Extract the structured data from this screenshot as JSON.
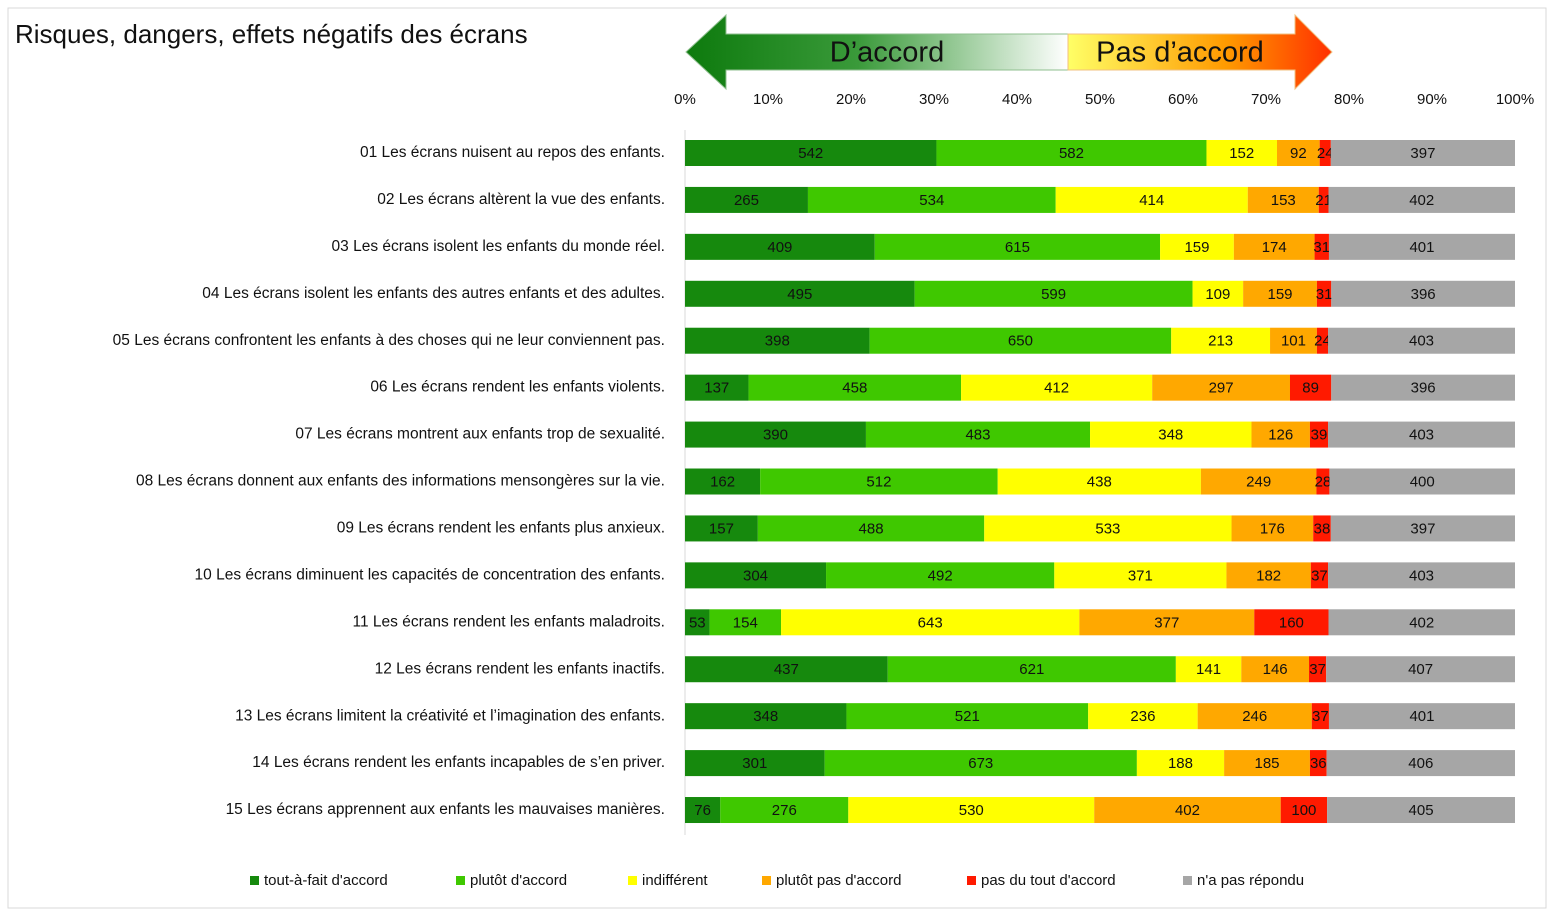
{
  "chart_data": {
    "type": "stacked-bar-100",
    "title": "Risques, dangers, effets négatifs des écrans",
    "annotations": [
      "D’accord",
      "Pas d’accord"
    ],
    "categories": [
      "01 Les écrans nuisent au repos des enfants.",
      "02 Les écrans altèrent la vue des enfants.",
      "03 Les écrans isolent les enfants du monde réel.",
      "04 Les écrans isolent les enfants des autres enfants et des adultes.",
      "05 Les écrans confrontent les enfants à des choses qui ne leur conviennent pas.",
      "06 Les écrans rendent les enfants violents.",
      "07 Les écrans montrent aux enfants trop de sexualité.",
      "08 Les écrans donnent aux enfants des informations mensongères sur la vie.",
      "09 Les écrans rendent les enfants plus anxieux.",
      "10 Les écrans diminuent les capacités de concentration des enfants.",
      "11 Les écrans rendent les enfants maladroits.",
      "12 Les écrans rendent les enfants inactifs.",
      "13 Les écrans limitent la créativité et l’imagination des enfants.",
      "14 Les écrans rendent les enfants incapables de s’en priver.",
      "15 Les écrans apprennent aux enfants les mauvaises manières."
    ],
    "series": [
      {
        "name": "tout-à-fait d'accord",
        "color": "#16890d",
        "values": [
          542,
          265,
          409,
          495,
          398,
          137,
          390,
          162,
          157,
          304,
          53,
          437,
          348,
          301,
          76
        ]
      },
      {
        "name": "plutôt d'accord",
        "color": "#3fc800",
        "values": [
          582,
          534,
          615,
          599,
          650,
          458,
          483,
          512,
          488,
          492,
          154,
          621,
          521,
          673,
          276
        ]
      },
      {
        "name": "indifférent",
        "color": "#ffff00",
        "values": [
          152,
          414,
          159,
          109,
          213,
          412,
          348,
          438,
          533,
          371,
          643,
          141,
          236,
          188,
          530
        ]
      },
      {
        "name": "plutôt pas d'accord",
        "color": "#ffa800",
        "values": [
          92,
          153,
          174,
          159,
          101,
          297,
          126,
          249,
          176,
          182,
          377,
          146,
          246,
          185,
          402
        ]
      },
      {
        "name": "pas du tout d'accord",
        "color": "#ff1a00",
        "values": [
          24,
          21,
          31,
          31,
          24,
          89,
          39,
          28,
          38,
          37,
          160,
          37,
          37,
          36,
          100
        ]
      },
      {
        "name": "n'a pas répondu",
        "color": "#a6a6a6",
        "values": [
          397,
          402,
          401,
          396,
          403,
          396,
          403,
          400,
          397,
          403,
          402,
          407,
          401,
          406,
          405
        ]
      }
    ],
    "xlim": [
      0,
      100
    ],
    "xticks": [
      {
        "value": 0,
        "label": "0%"
      },
      {
        "value": 10,
        "label": "10%"
      },
      {
        "value": 20,
        "label": "20%"
      },
      {
        "value": 30,
        "label": "30%"
      },
      {
        "value": 40,
        "label": "40%"
      },
      {
        "value": 50,
        "label": "50%"
      },
      {
        "value": 60,
        "label": "60%"
      },
      {
        "value": 70,
        "label": "70%"
      },
      {
        "value": 80,
        "label": "80%"
      },
      {
        "value": 90,
        "label": "90%"
      },
      {
        "value": 100,
        "label": "100%"
      }
    ],
    "legend": "bottom"
  }
}
